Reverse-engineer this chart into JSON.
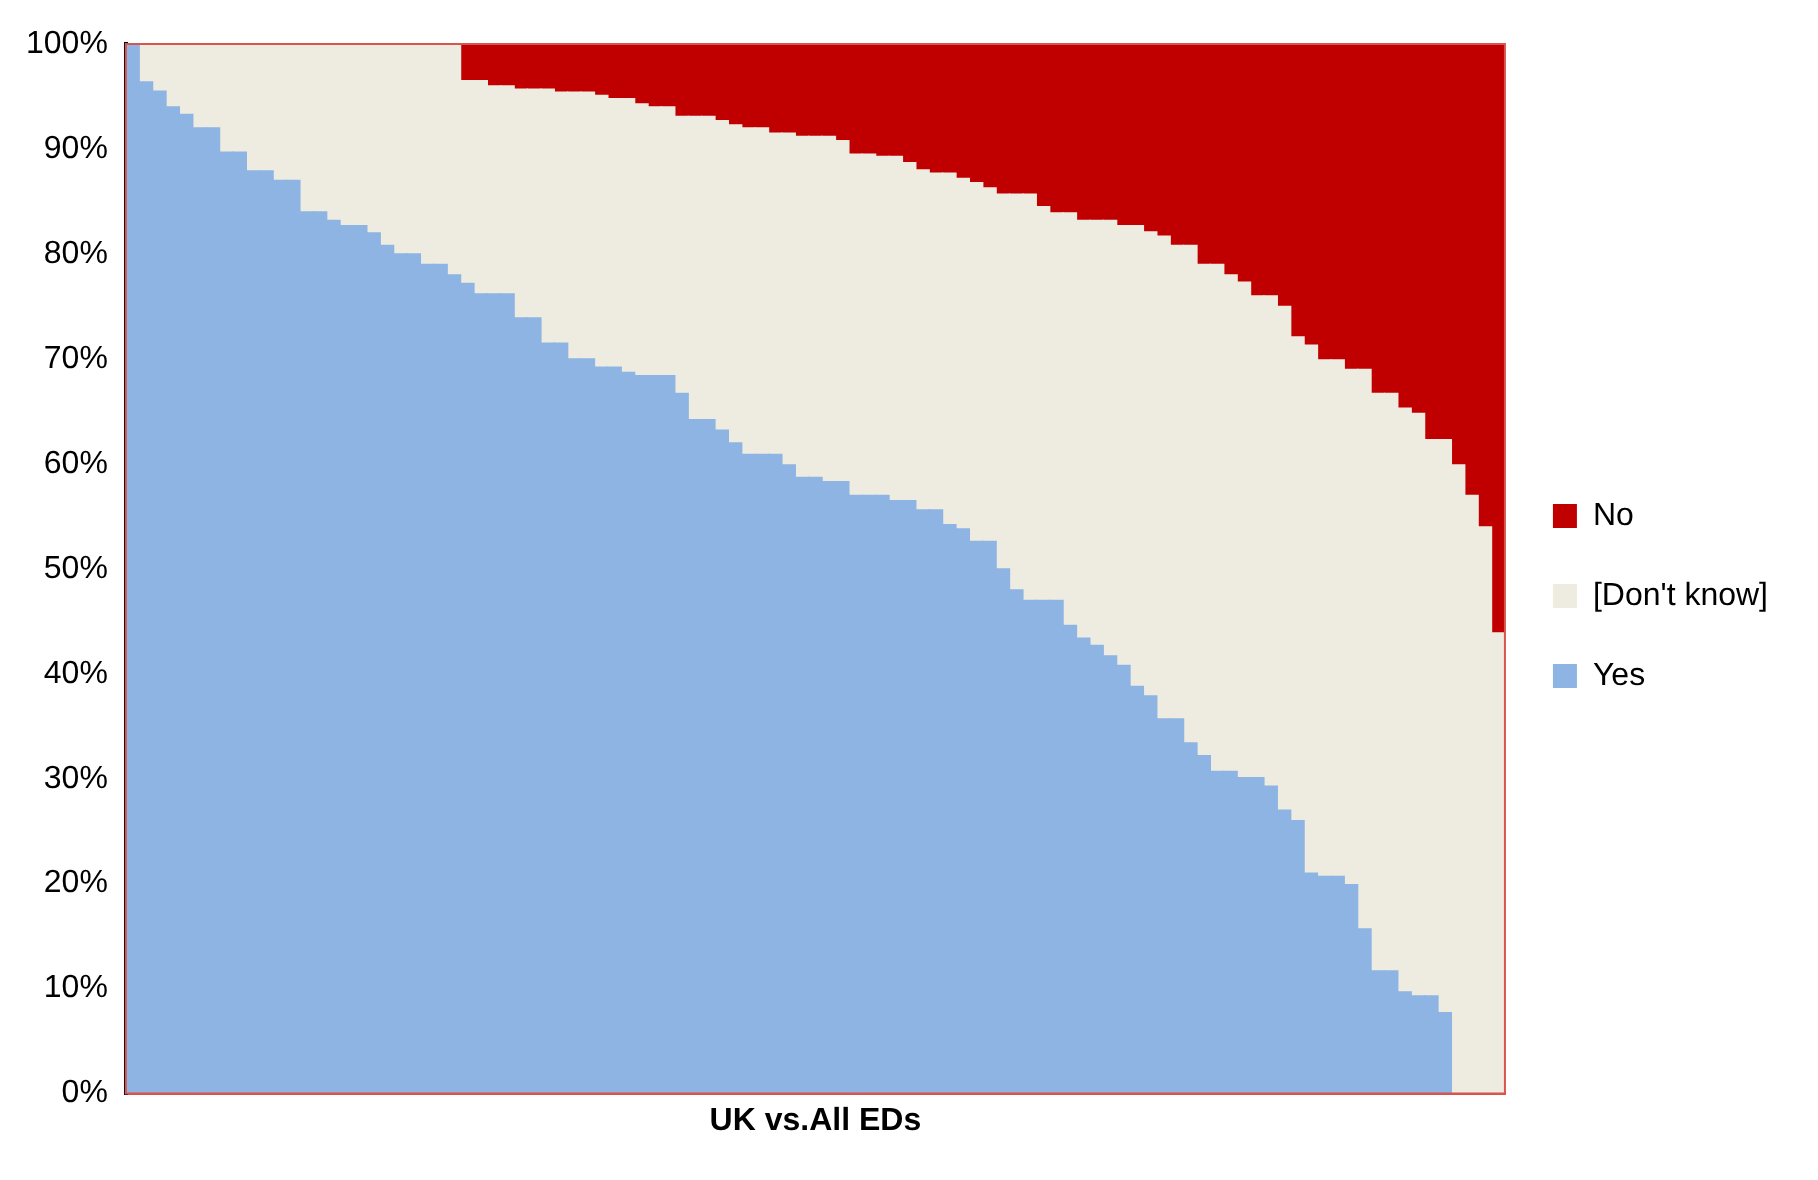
{
  "chart_data": {
    "type": "bar",
    "stacked": true,
    "xlabel": "UK vs.All EDs",
    "legend": "right",
    "grid": false,
    "categories": [
      null,
      null,
      null,
      null,
      null,
      null,
      null,
      null,
      null,
      null,
      null,
      null,
      null,
      null,
      null,
      null,
      null,
      null,
      null,
      null,
      null,
      null,
      null,
      null,
      null,
      null,
      null,
      null,
      null,
      null,
      null,
      null,
      null,
      null,
      null,
      null,
      null,
      null,
      null,
      null,
      null,
      null,
      null,
      null,
      null,
      null,
      null,
      null,
      null,
      null,
      null,
      null,
      null,
      null,
      null,
      null,
      null,
      null,
      null,
      null,
      null,
      null,
      null,
      null,
      null,
      null,
      null,
      null,
      null,
      null,
      null,
      null,
      null,
      null,
      null,
      null,
      null,
      null,
      null,
      null,
      null,
      null,
      null,
      null,
      null,
      null,
      null,
      null,
      null,
      null,
      null,
      null,
      null,
      null,
      null,
      null,
      null,
      null,
      null,
      null,
      null,
      null,
      null
    ],
    "ylim": [
      0,
      100
    ],
    "yticks": [
      {
        "value": 0,
        "label": "0%"
      },
      {
        "value": 10,
        "label": "10%"
      },
      {
        "value": 20,
        "label": "20%"
      },
      {
        "value": 30,
        "label": "30%"
      },
      {
        "value": 40,
        "label": "40%"
      },
      {
        "value": 50,
        "label": "50%"
      },
      {
        "value": 60,
        "label": "60%"
      },
      {
        "value": 70,
        "label": "70%"
      },
      {
        "value": 80,
        "label": "80%"
      },
      {
        "value": 90,
        "label": "90%"
      },
      {
        "value": 100,
        "label": "100%"
      }
    ],
    "series": [
      {
        "name": "Yes",
        "color": "#8eb4e3",
        "values": [
          100,
          96.4,
          95.5,
          94,
          93.3,
          92,
          92,
          89.7,
          89.7,
          87.9,
          87.9,
          87,
          87,
          84,
          84,
          83.2,
          82.7,
          82.7,
          82,
          80.8,
          80,
          80,
          79,
          79,
          78,
          77.2,
          76.2,
          76.2,
          76.2,
          73.9,
          73.9,
          71.5,
          71.5,
          70,
          70,
          69.2,
          69.2,
          68.7,
          68.4,
          68.4,
          68.4,
          66.7,
          64.2,
          64.2,
          63.2,
          62,
          60.9,
          60.9,
          60.9,
          59.9,
          58.7,
          58.7,
          58.3,
          58.3,
          57,
          57,
          57,
          56.5,
          56.5,
          55.6,
          55.6,
          54.2,
          53.8,
          52.6,
          52.6,
          50,
          48,
          47,
          47,
          47,
          44.6,
          43.4,
          42.7,
          41.7,
          40.8,
          38.8,
          37.9,
          35.7,
          35.7,
          33.4,
          32.2,
          30.7,
          30.7,
          30.1,
          30.1,
          29.3,
          27,
          26,
          21,
          20.7,
          20.7,
          19.9,
          15.7,
          11.7,
          11.7,
          9.7,
          9.3,
          9.3,
          7.7,
          0,
          0,
          0,
          0
        ]
      },
      {
        "name": "[Don't know]",
        "color": "#eeece1",
        "values": [
          0,
          3.6,
          4.5,
          6,
          6.7,
          8,
          8,
          10.3,
          10.3,
          12.1,
          12.1,
          13,
          13,
          16,
          16,
          16.8,
          17.3,
          17.3,
          18,
          19.2,
          20,
          20,
          21,
          21,
          22,
          19.3,
          20.3,
          19.8,
          19.8,
          21.8,
          21.8,
          24.2,
          23.9,
          25.4,
          25.4,
          25.9,
          25.6,
          26.1,
          25.9,
          25.6,
          25.6,
          26.4,
          28.9,
          28.9,
          29.5,
          30.3,
          31.1,
          31.1,
          30.6,
          31.6,
          32.5,
          32.5,
          32.9,
          32.5,
          32.5,
          32.5,
          32.3,
          32.8,
          32.2,
          32.4,
          32.1,
          33.5,
          33.4,
          34.2,
          33.7,
          35.7,
          37.7,
          38.7,
          37.5,
          36.9,
          39.3,
          39.8,
          40.5,
          41.5,
          41.9,
          43.9,
          44.2,
          46,
          45.1,
          47.4,
          46.8,
          48.3,
          47.3,
          47.2,
          45.9,
          46.7,
          48,
          46.1,
          50.3,
          49.2,
          49.2,
          49.1,
          53.3,
          55,
          55,
          55.6,
          55.5,
          53,
          54.6,
          59.9,
          57,
          54,
          43.9
        ]
      },
      {
        "name": "No",
        "color": "#c00000",
        "values": [
          0,
          0,
          0,
          0,
          0,
          0,
          0,
          0,
          0,
          0,
          0,
          0,
          0,
          0,
          0,
          0,
          0,
          0,
          0,
          0,
          0,
          0,
          0,
          0,
          0,
          3.5,
          3.5,
          4,
          4,
          4.3,
          4.3,
          4.3,
          4.6,
          4.6,
          4.6,
          4.9,
          5.2,
          5.2,
          5.7,
          6,
          6,
          6.9,
          6.9,
          6.9,
          7.3,
          7.7,
          8,
          8,
          8.5,
          8.5,
          8.8,
          8.8,
          8.8,
          9.2,
          10.5,
          10.5,
          10.7,
          10.7,
          11.3,
          12,
          12.3,
          12.3,
          12.8,
          13.2,
          13.7,
          14.3,
          14.3,
          14.3,
          15.5,
          16.1,
          16.1,
          16.8,
          16.8,
          16.8,
          17.3,
          17.3,
          17.9,
          18.3,
          19.2,
          19.2,
          21,
          21,
          22,
          22.7,
          24,
          24,
          25,
          27.9,
          28.7,
          30.1,
          30.1,
          31,
          31,
          33.3,
          33.3,
          34.7,
          35.2,
          37.7,
          37.7,
          40.1,
          43,
          46,
          56.1
        ]
      }
    ]
  }
}
